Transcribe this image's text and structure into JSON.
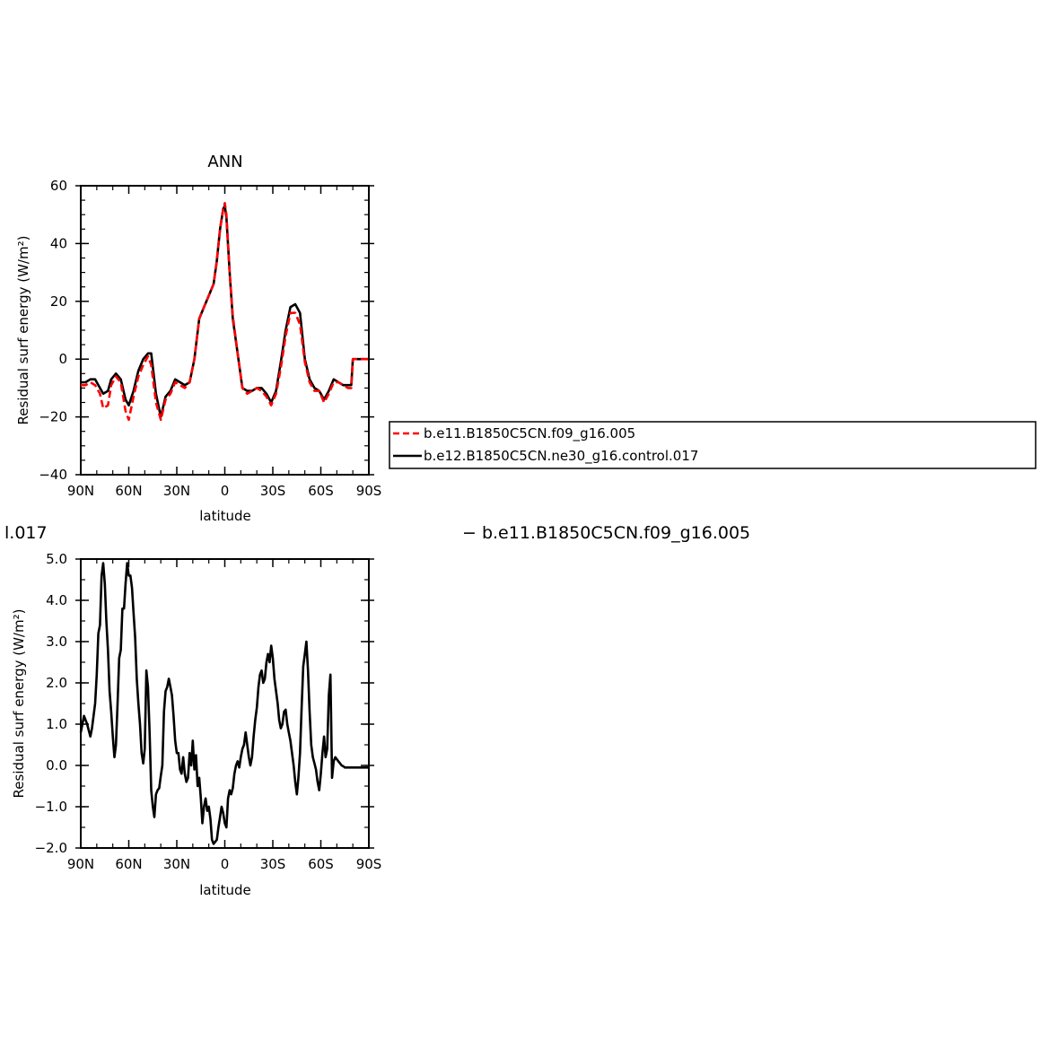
{
  "chart_data": [
    {
      "type": "line",
      "title": "ANN",
      "xlabel": "latitude",
      "ylabel": "Residual surf energy (W/m²)",
      "xlim": [
        90,
        -90
      ],
      "ylim": [
        -40,
        60
      ],
      "xticks": [
        "90N",
        "60N",
        "30N",
        "0",
        "30S",
        "60S",
        "90S"
      ],
      "xtick_values": [
        90,
        60,
        30,
        0,
        -30,
        -60,
        -90
      ],
      "yticks": [
        "60",
        "40",
        "20",
        "0",
        "−20",
        "−40"
      ],
      "ytick_values": [
        60,
        40,
        20,
        0,
        -20,
        -40
      ],
      "legend_placement": "right, outside plot",
      "series": [
        {
          "name": "b.e11.B1850C5CN.f09_g16.005",
          "color": "#ff0000",
          "style": "dashed",
          "x": [
            90,
            87,
            84,
            81,
            78,
            76,
            73,
            71,
            68,
            65,
            62,
            60,
            57,
            54,
            51,
            48,
            46,
            43,
            40,
            37,
            34,
            31,
            28,
            25,
            22,
            19,
            16,
            13,
            10,
            7,
            5,
            3,
            1,
            0,
            -1,
            -3,
            -5,
            -8,
            -11,
            -14,
            -17,
            -20,
            -23,
            -26,
            -29,
            -32,
            -35,
            -38,
            -41,
            -44,
            -47,
            -50,
            -53,
            -56,
            -59,
            -62,
            -65,
            -68,
            -71,
            -74,
            -77,
            -79,
            -80,
            -82,
            -85,
            -88,
            -90
          ],
          "y": [
            -9,
            -9,
            -8,
            -9,
            -12,
            -17,
            -16,
            -9,
            -6,
            -8,
            -18,
            -21,
            -13,
            -6,
            -2,
            1,
            -2,
            -15,
            -21,
            -14,
            -12,
            -8,
            -9,
            -10,
            -8,
            0,
            14,
            18,
            22,
            26,
            34,
            45,
            52,
            54,
            50,
            30,
            15,
            2,
            -10,
            -12,
            -11,
            -10,
            -11,
            -13,
            -16,
            -12,
            -3,
            8,
            16,
            16,
            12,
            -1,
            -8,
            -11,
            -11,
            -15,
            -12,
            -8,
            -8,
            -9,
            -10,
            -10,
            0,
            0,
            0,
            0,
            0
          ]
        },
        {
          "name": "b.e12.B1850C5CN.ne30_g16.control.017",
          "color": "#000000",
          "style": "solid",
          "x": [
            90,
            87,
            84,
            81,
            78,
            76,
            73,
            71,
            68,
            65,
            62,
            60,
            57,
            54,
            51,
            48,
            46,
            43,
            40,
            37,
            34,
            31,
            28,
            25,
            22,
            19,
            16,
            13,
            10,
            7,
            5,
            3,
            1,
            0,
            -1,
            -3,
            -5,
            -8,
            -11,
            -14,
            -17,
            -20,
            -23,
            -26,
            -29,
            -32,
            -35,
            -38,
            -41,
            -44,
            -47,
            -50,
            -53,
            -56,
            -59,
            -62,
            -65,
            -68,
            -71,
            -74,
            -77,
            -79,
            -80,
            -82,
            -85,
            -88,
            -90
          ],
          "y": [
            -8,
            -8,
            -7,
            -7,
            -10,
            -12,
            -11,
            -7,
            -5,
            -7,
            -14,
            -16,
            -11,
            -4,
            0,
            2,
            2,
            -12,
            -20,
            -13,
            -11,
            -7,
            -8,
            -9,
            -8,
            0,
            14,
            18,
            22,
            26,
            34,
            45,
            52,
            53,
            49,
            30,
            14,
            2,
            -10,
            -11,
            -11,
            -10,
            -10,
            -12,
            -15,
            -11,
            -1,
            10,
            18,
            19,
            16,
            0,
            -7,
            -10,
            -11,
            -14,
            -11,
            -7,
            -8,
            -9,
            -9,
            -9,
            0,
            0,
            0,
            0,
            0
          ]
        }
      ]
    },
    {
      "type": "line",
      "title_fragment_left": "l.017",
      "title_fragment_right": "− b.e11.B1850C5CN.f09_g16.005",
      "xlabel": "latitude",
      "ylabel": "Residual surf energy (W/m²)",
      "xlim": [
        90,
        -90
      ],
      "ylim": [
        -2.0,
        5.0
      ],
      "xticks": [
        "90N",
        "60N",
        "30N",
        "0",
        "30S",
        "60S",
        "90S"
      ],
      "xtick_values": [
        90,
        60,
        30,
        0,
        -30,
        -60,
        -90
      ],
      "yticks": [
        "5.0",
        "4.0",
        "3.0",
        "2.0",
        "1.0",
        "0.0",
        "−1.0",
        "−2.0"
      ],
      "ytick_values": [
        5,
        4,
        3,
        2,
        1,
        0,
        -1,
        -2
      ],
      "series": [
        {
          "color": "#000000",
          "style": "solid",
          "x": [
            90,
            88,
            86,
            84,
            83,
            81,
            80,
            79,
            78,
            77,
            76,
            75,
            74,
            73,
            72,
            71,
            70,
            69,
            68,
            67,
            66,
            65,
            64,
            63,
            62,
            61,
            60,
            59,
            58,
            57,
            56,
            55,
            54,
            53,
            52,
            51,
            50,
            49,
            48,
            47,
            46,
            45,
            44,
            43,
            42,
            41,
            40,
            39,
            38,
            37,
            36,
            35,
            34,
            33,
            32,
            31,
            30,
            29,
            28,
            27,
            26,
            25,
            24,
            23,
            22,
            21,
            20,
            19,
            18,
            17,
            16,
            15,
            14,
            13,
            12,
            11,
            10,
            9,
            8,
            7,
            6,
            5,
            4,
            3,
            2,
            1,
            0,
            -1,
            -2,
            -3,
            -4,
            -5,
            -6,
            -7,
            -8,
            -9,
            -10,
            -11,
            -12,
            -13,
            -14,
            -15,
            -16,
            -17,
            -18,
            -19,
            -20,
            -21,
            -22,
            -23,
            -24,
            -25,
            -26,
            -27,
            -28,
            -29,
            -30,
            -31,
            -32,
            -33,
            -34,
            -35,
            -36,
            -37,
            -38,
            -39,
            -40,
            -41,
            -42,
            -43,
            -44,
            -45,
            -46,
            -47,
            -48,
            -49,
            -50,
            -51,
            -52,
            -53,
            -54,
            -55,
            -56,
            -57,
            -58,
            -59,
            -60,
            -61,
            -62,
            -63,
            -64,
            -65,
            -66,
            -67,
            -68,
            -69,
            -70,
            -71,
            -72,
            -73,
            -74,
            -75,
            -76,
            -77,
            -78,
            -79,
            -80,
            -81,
            -82,
            -83,
            -84,
            -85,
            -86,
            -87,
            -88,
            -89,
            -90
          ],
          "y": [
            0.8,
            1.2,
            1.0,
            0.7,
            0.9,
            1.5,
            2.2,
            3.2,
            3.4,
            4.6,
            4.9,
            4.4,
            3.5,
            2.8,
            1.8,
            1.3,
            0.7,
            0.2,
            0.5,
            1.5,
            2.6,
            2.8,
            3.8,
            3.8,
            4.4,
            4.9,
            4.6,
            4.6,
            4.3,
            3.7,
            3.1,
            2.1,
            1.5,
            1.0,
            0.3,
            0.05,
            0.4,
            2.3,
            1.9,
            0.8,
            -0.6,
            -1.0,
            -1.25,
            -0.7,
            -0.6,
            -0.55,
            -0.25,
            0.0,
            1.3,
            1.8,
            1.9,
            2.1,
            1.9,
            1.7,
            1.2,
            0.6,
            0.3,
            0.3,
            -0.1,
            -0.2,
            0.2,
            -0.2,
            -0.4,
            -0.3,
            0.3,
            0.0,
            0.6,
            -0.1,
            0.25,
            -0.5,
            -0.3,
            -0.8,
            -1.4,
            -1.0,
            -0.8,
            -1.1,
            -1.0,
            -1.3,
            -1.8,
            -1.9,
            -1.85,
            -1.8,
            -1.5,
            -1.25,
            -1.0,
            -1.15,
            -1.4,
            -1.5,
            -0.8,
            -0.6,
            -0.7,
            -0.55,
            -0.2,
            0.0,
            0.1,
            -0.05,
            0.2,
            0.4,
            0.5,
            0.8,
            0.5,
            0.2,
            0.0,
            0.2,
            0.7,
            1.1,
            1.4,
            1.9,
            2.2,
            2.3,
            2.0,
            2.1,
            2.5,
            2.7,
            2.5,
            2.9,
            2.6,
            2.1,
            1.8,
            1.5,
            1.1,
            0.9,
            1.0,
            1.3,
            1.35,
            1.0,
            0.8,
            0.6,
            0.3,
            0.0,
            -0.4,
            -0.7,
            -0.3,
            0.3,
            1.4,
            2.4,
            2.7,
            3.0,
            2.3,
            1.3,
            0.5,
            0.2,
            0.05,
            -0.1,
            -0.4,
            -0.6,
            -0.2,
            0.3,
            0.7,
            0.2,
            0.4,
            1.7,
            2.2,
            -0.3,
            0.1,
            0.2,
            0.15,
            0.1,
            0.05,
            0.0,
            -0.02,
            -0.05,
            -0.05,
            -0.05,
            -0.05,
            -0.05,
            -0.05,
            -0.05,
            -0.05,
            -0.05,
            -0.05,
            -0.05,
            -0.05,
            -0.05,
            -0.05,
            -0.05,
            -0.05
          ]
        }
      ]
    }
  ]
}
